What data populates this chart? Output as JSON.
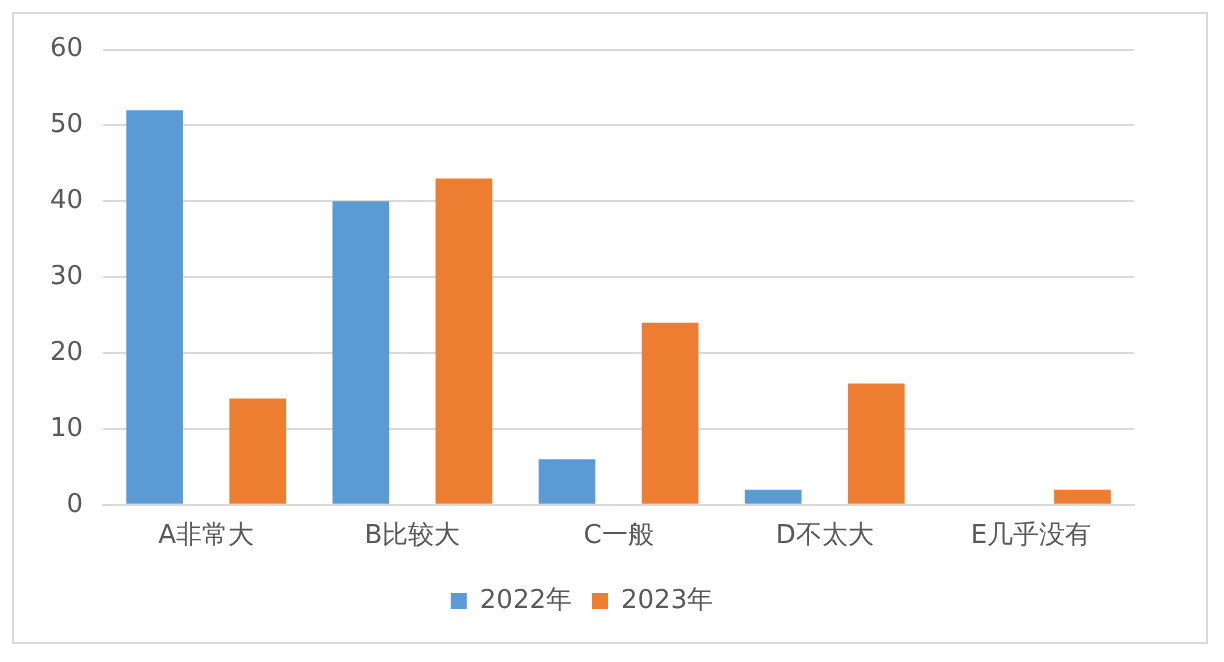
{
  "chart_data": {
    "type": "bar",
    "categories": [
      "A非常大",
      "B比较大",
      "C一般",
      "D不太大",
      "E几乎没有"
    ],
    "series": [
      {
        "name": "2022年",
        "color": "#5b9bd5",
        "values": [
          52,
          40,
          6,
          2,
          0
        ]
      },
      {
        "name": "2023年",
        "color": "#ed7d31",
        "values": [
          14,
          43,
          24,
          16,
          2
        ]
      }
    ],
    "ylim": [
      0,
      60
    ],
    "yticks": [
      0,
      10,
      20,
      30,
      40,
      50,
      60
    ],
    "grid": "y",
    "legend": "bottom"
  }
}
